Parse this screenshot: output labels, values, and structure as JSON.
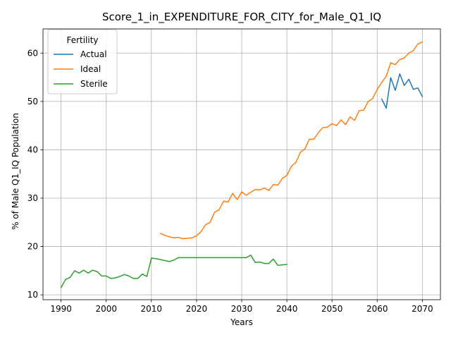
{
  "chart_data": {
    "type": "line",
    "title": "Score_1_in_EXPENDITURE_FOR_CITY_for_Male_Q1_IQ",
    "xlabel": "Years",
    "ylabel": "% of Male Q1_IQ Population",
    "xlim": [
      1986,
      2074
    ],
    "ylim": [
      9,
      65
    ],
    "x_ticks": [
      1990,
      2000,
      2010,
      2020,
      2030,
      2040,
      2050,
      2060,
      2070
    ],
    "y_ticks": [
      10,
      20,
      30,
      40,
      50,
      60
    ],
    "grid": true,
    "legend": {
      "title": "Fertility",
      "placement": "top-left",
      "entries": [
        "Actual",
        "Ideal",
        "Sterile"
      ]
    },
    "series": [
      {
        "name": "Actual",
        "color": "#1f77b4",
        "x": [
          2061,
          2062,
          2063,
          2064,
          2065,
          2066,
          2067,
          2068,
          2069,
          2070
        ],
        "y": [
          50.5,
          48.6,
          54.9,
          52.3,
          55.7,
          53.3,
          54.6,
          52.5,
          52.8,
          51.0
        ]
      },
      {
        "name": "Ideal",
        "color": "#ff7f0e",
        "x": [
          2012,
          2013,
          2014,
          2015,
          2016,
          2017,
          2018,
          2019,
          2020,
          2021,
          2022,
          2023,
          2024,
          2025,
          2026,
          2027,
          2028,
          2029,
          2030,
          2031,
          2032,
          2033,
          2034,
          2035,
          2036,
          2037,
          2038,
          2039,
          2040,
          2041,
          2042,
          2043,
          2044,
          2045,
          2046,
          2047,
          2048,
          2049,
          2050,
          2051,
          2052,
          2053,
          2054,
          2055,
          2056,
          2057,
          2058,
          2059,
          2060,
          2061,
          2062,
          2063,
          2064,
          2065,
          2066,
          2067,
          2068,
          2069,
          2070
        ],
        "y": [
          22.7,
          22.3,
          22.0,
          21.8,
          21.9,
          21.6,
          21.7,
          21.8,
          22.2,
          23.1,
          24.5,
          25.0,
          27.1,
          27.6,
          29.4,
          29.2,
          31.0,
          29.7,
          31.3,
          30.6,
          31.2,
          31.8,
          31.7,
          32.1,
          31.6,
          32.8,
          32.7,
          34.1,
          34.7,
          36.6,
          37.4,
          39.5,
          40.2,
          42.2,
          42.2,
          43.6,
          44.6,
          44.7,
          45.4,
          45.0,
          46.2,
          45.2,
          46.8,
          46.1,
          48.1,
          48.2,
          50.0,
          50.6,
          52.5,
          53.9,
          55.2,
          58.0,
          57.6,
          58.7,
          59.0,
          60.0,
          60.5,
          61.9,
          62.3
        ]
      },
      {
        "name": "Sterile",
        "color": "#2ca02c",
        "x": [
          1990,
          1991,
          1992,
          1993,
          1994,
          1995,
          1996,
          1997,
          1998,
          1999,
          2000,
          2001,
          2002,
          2003,
          2004,
          2005,
          2006,
          2007,
          2008,
          2009,
          2010,
          2011,
          2012,
          2013,
          2014,
          2015,
          2016,
          2017,
          2018,
          2019,
          2020,
          2021,
          2022,
          2023,
          2024,
          2025,
          2026,
          2027,
          2028,
          2029,
          2030,
          2031,
          2032,
          2033,
          2034,
          2035,
          2036,
          2037,
          2038,
          2039,
          2040
        ],
        "y": [
          11.5,
          13.2,
          13.6,
          15.0,
          14.5,
          15.1,
          14.5,
          15.1,
          14.8,
          13.9,
          13.9,
          13.4,
          13.5,
          13.8,
          14.2,
          13.9,
          13.4,
          13.4,
          14.3,
          13.8,
          17.6,
          17.5,
          17.3,
          17.1,
          16.9,
          17.2,
          17.7,
          17.7,
          17.7,
          17.7,
          17.7,
          17.7,
          17.7,
          17.7,
          17.7,
          17.7,
          17.7,
          17.7,
          17.7,
          17.7,
          17.7,
          17.7,
          18.2,
          16.7,
          16.8,
          16.5,
          16.5,
          17.4,
          16.1,
          16.2,
          16.3
        ]
      }
    ]
  }
}
